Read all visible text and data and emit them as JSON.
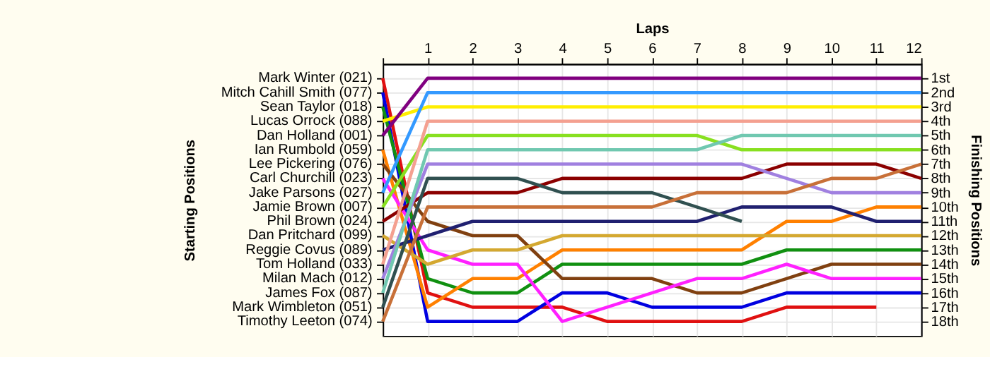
{
  "chart_data": {
    "type": "line",
    "xlabel": "Laps",
    "ylabel": "Finishing Positions",
    "x": [
      0,
      1,
      2,
      3,
      4,
      5,
      6,
      7,
      8,
      9,
      10,
      11,
      12
    ],
    "xlim": [
      0,
      12
    ],
    "xticks": [
      {
        "value": 0,
        "label": null
      },
      1,
      2,
      3,
      4,
      5,
      6,
      7,
      8,
      9,
      10,
      11,
      12
    ],
    "ylim": [
      19,
      0
    ],
    "yticks": [
      {
        "value": 1,
        "label": "1st"
      },
      {
        "value": 2,
        "label": "2nd"
      },
      {
        "value": 3,
        "label": "3rd"
      },
      {
        "value": 4,
        "label": "4th"
      },
      {
        "value": 5,
        "label": "5th"
      },
      {
        "value": 6,
        "label": "6th"
      },
      {
        "value": 7,
        "label": "7th"
      },
      {
        "value": 8,
        "label": "8th"
      },
      {
        "value": 9,
        "label": "9th"
      },
      {
        "value": 10,
        "label": "10th"
      },
      {
        "value": 11,
        "label": "11th"
      },
      {
        "value": 12,
        "label": "12th"
      },
      {
        "value": 13,
        "label": "13th"
      },
      {
        "value": 14,
        "label": "14th"
      },
      {
        "value": 15,
        "label": "15th"
      },
      {
        "value": 16,
        "label": "16th"
      },
      {
        "value": 17,
        "label": "17th"
      },
      {
        "value": 18,
        "label": "18th"
      }
    ],
    "annotations": [
      "Starting Positions",
      "Mark Winter (021)",
      "Mitch Cahill Smith (077)",
      "Sean Taylor (018)",
      "Lucas Orrock (088)",
      "Dan Holland (001)",
      "Ian Rumbold (059)",
      "Lee Pickering (076)",
      "Carl Churchill (023)",
      "Jake Parsons (027)",
      "Jamie Brown (007)",
      "Phil Brown (024)",
      "Dan Pritchard (099)",
      "Reggie Covus (089)",
      "Tom Holland (033)",
      "Milan Mach (012)",
      "James Fox (087)",
      "Mark Wimbleton (051)",
      "Timothy Leeton (074)"
    ],
    "grid": true,
    "legend": false,
    "marker": "none",
    "line_style": "solid",
    "series": [
      {
        "color": "#e01010",
        "values": [
          1,
          16,
          17,
          17,
          17,
          18,
          18,
          18,
          18,
          17,
          17,
          17,
          null
        ]
      },
      {
        "color": "#0000e0",
        "values": [
          2,
          18,
          18,
          18,
          16,
          16,
          17,
          17,
          17,
          16,
          16,
          16,
          16
        ]
      },
      {
        "color": "#109010",
        "values": [
          3,
          15,
          16,
          16,
          14,
          14,
          14,
          14,
          14,
          13,
          13,
          13,
          13
        ]
      },
      {
        "color": "#ffee00",
        "values": [
          4,
          3,
          3,
          3,
          3,
          3,
          3,
          3,
          3,
          3,
          3,
          3,
          3
        ]
      },
      {
        "color": "#800080",
        "values": [
          5,
          1,
          1,
          1,
          1,
          1,
          1,
          1,
          1,
          1,
          1,
          1,
          1
        ]
      },
      {
        "color": "#ff8000",
        "values": [
          6,
          17,
          15,
          15,
          13,
          13,
          13,
          13,
          13,
          11,
          11,
          10,
          10
        ]
      },
      {
        "color": "#804010",
        "values": [
          7,
          11,
          12,
          12,
          15,
          15,
          15,
          16,
          16,
          15,
          14,
          14,
          14
        ]
      },
      {
        "color": "#ff20ff",
        "values": [
          8,
          13,
          14,
          14,
          18,
          17,
          16,
          15,
          15,
          14,
          15,
          15,
          15
        ]
      },
      {
        "color": "#3399ff",
        "values": [
          9,
          2,
          2,
          2,
          2,
          2,
          2,
          2,
          2,
          2,
          2,
          2,
          2
        ]
      },
      {
        "color": "#88e020",
        "values": [
          10,
          5,
          5,
          5,
          5,
          5,
          5,
          5,
          6,
          6,
          6,
          6,
          6
        ]
      },
      {
        "color": "#8b0000",
        "values": [
          11,
          9,
          9,
          9,
          8,
          8,
          8,
          8,
          8,
          7,
          7,
          7,
          8
        ]
      },
      {
        "color": "#d4a830",
        "values": [
          12,
          14,
          13,
          13,
          12,
          12,
          12,
          12,
          12,
          12,
          12,
          12,
          12
        ]
      },
      {
        "color": "#202070",
        "values": [
          13,
          12,
          11,
          11,
          11,
          11,
          11,
          11,
          10,
          10,
          10,
          11,
          11
        ]
      },
      {
        "color": "#f4a090",
        "values": [
          14,
          4,
          4,
          4,
          4,
          4,
          4,
          4,
          4,
          4,
          4,
          4,
          4
        ]
      },
      {
        "color": "#a080e0",
        "values": [
          15,
          7,
          7,
          7,
          7,
          7,
          7,
          7,
          7,
          8,
          9,
          9,
          9
        ]
      },
      {
        "color": "#70c8b0",
        "values": [
          16,
          6,
          6,
          6,
          6,
          6,
          6,
          6,
          5,
          5,
          5,
          5,
          5
        ]
      },
      {
        "color": "#305050",
        "values": [
          17,
          8,
          8,
          8,
          9,
          9,
          9,
          10,
          11,
          null,
          null,
          null,
          null
        ]
      },
      {
        "color": "#c87038",
        "values": [
          18,
          10,
          10,
          10,
          10,
          10,
          10,
          9,
          9,
          9,
          8,
          8,
          7
        ]
      }
    ]
  }
}
